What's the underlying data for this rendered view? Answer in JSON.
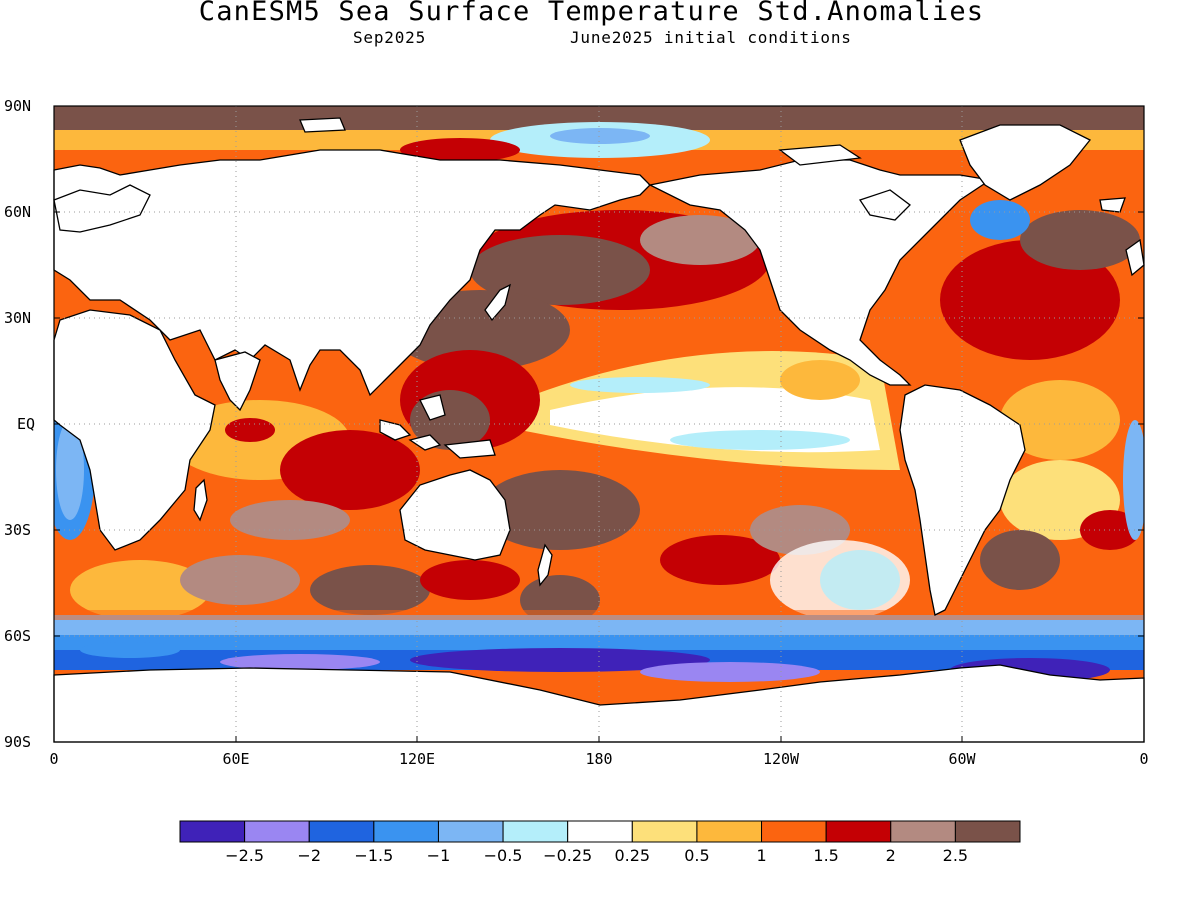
{
  "title": "CanESM5 Sea Surface Temperature Std.Anomalies",
  "subtitle_left": "Sep2025",
  "subtitle_right": "June2025 initial conditions",
  "lat_labels": [
    "90N",
    "60N",
    "30N",
    "EQ",
    "30S",
    "60S",
    "90S"
  ],
  "lon_labels": [
    "0",
    "60E",
    "120E",
    "180",
    "120W",
    "60W",
    "0"
  ],
  "colorbar": {
    "colors": [
      "#3f22b8",
      "#9a86f2",
      "#1f64e0",
      "#3a93f0",
      "#7cb6f4",
      "#b4eefa",
      "#ffffff",
      "#fde07a",
      "#fdb83c",
      "#fb6410",
      "#c40004",
      "#b38a81",
      "#7a5249"
    ],
    "tick_labels": [
      "−2.5",
      "−2",
      "−1.5",
      "−1",
      "−0.5",
      "−0.25",
      "0.25",
      "0.5",
      "1",
      "1.5",
      "2",
      "2.5"
    ]
  }
}
